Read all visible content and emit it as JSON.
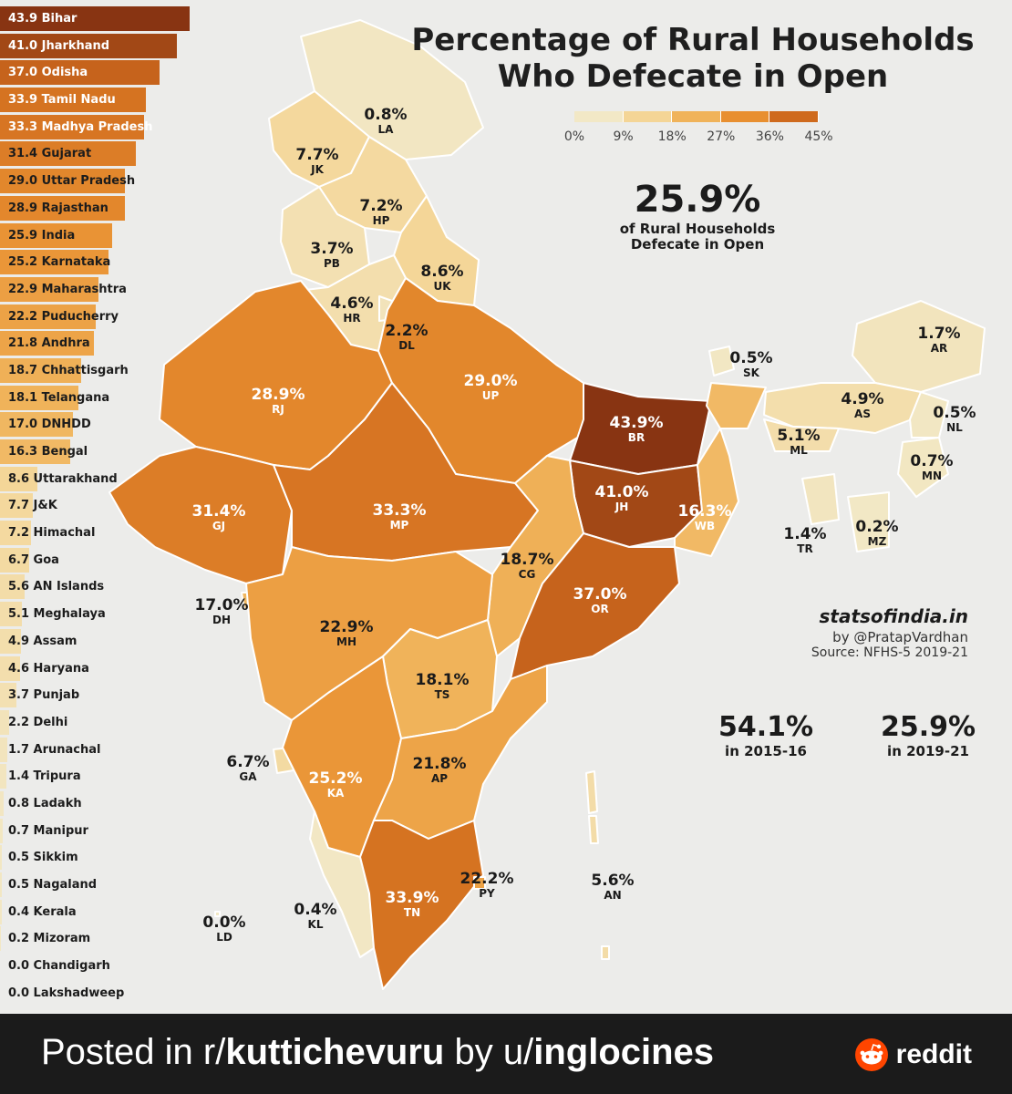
{
  "title_line1": "Percentage of Rural Households",
  "title_line2": "Who Defecate in Open",
  "legend": {
    "ticks": [
      "0%",
      "9%",
      "18%",
      "27%",
      "36%",
      "45%"
    ],
    "colors": [
      "#f2e8c6",
      "#f4d596",
      "#f0b35a",
      "#e88f30",
      "#cf6a1d",
      "#8a3512"
    ]
  },
  "headline": {
    "value": "25.9%",
    "line1": "of Rural Households",
    "line2": "Defecate in Open"
  },
  "credits": {
    "site": "statsofindia.in",
    "by": "by @PratapVardhan",
    "source": "Source: NFHS-5 2019-21"
  },
  "comparison": [
    {
      "value": "54.1%",
      "label": "in 2015-16"
    },
    {
      "value": "25.9%",
      "label": "in 2019-21"
    }
  ],
  "chart_data": {
    "type": "bar",
    "max": 45,
    "items": [
      {
        "value": 43.9,
        "name": "Bihar",
        "label": "43.9 Bihar"
      },
      {
        "value": 41.0,
        "name": "Jharkhand",
        "label": "41.0 Jharkhand"
      },
      {
        "value": 37.0,
        "name": "Odisha",
        "label": "37.0 Odisha"
      },
      {
        "value": 33.9,
        "name": "Tamil Nadu",
        "label": "33.9 Tamil Nadu"
      },
      {
        "value": 33.3,
        "name": "Madhya Pradesh",
        "label": "33.3 Madhya Pradesh"
      },
      {
        "value": 31.4,
        "name": "Gujarat",
        "label": "31.4 Gujarat"
      },
      {
        "value": 29.0,
        "name": "Uttar Pradesh",
        "label": "29.0 Uttar Pradesh"
      },
      {
        "value": 28.9,
        "name": "Rajasthan",
        "label": "28.9 Rajasthan"
      },
      {
        "value": 25.9,
        "name": "India",
        "label": "25.9 India"
      },
      {
        "value": 25.2,
        "name": "Karnataka",
        "label": "25.2 Karnataka"
      },
      {
        "value": 22.9,
        "name": "Maharashtra",
        "label": "22.9 Maharashtra"
      },
      {
        "value": 22.2,
        "name": "Puducherry",
        "label": "22.2 Puducherry"
      },
      {
        "value": 21.8,
        "name": "Andhra",
        "label": "21.8 Andhra"
      },
      {
        "value": 18.7,
        "name": "Chhattisgarh",
        "label": "18.7 Chhattisgarh"
      },
      {
        "value": 18.1,
        "name": "Telangana",
        "label": "18.1 Telangana"
      },
      {
        "value": 17.0,
        "name": "DNHDD",
        "label": "17.0 DNHDD"
      },
      {
        "value": 16.3,
        "name": "Bengal",
        "label": "16.3 Bengal"
      },
      {
        "value": 8.6,
        "name": "Uttarakhand",
        "label": "8.6 Uttarakhand"
      },
      {
        "value": 7.7,
        "name": "J&K",
        "label": "7.7 J&K"
      },
      {
        "value": 7.2,
        "name": "Himachal",
        "label": "7.2 Himachal"
      },
      {
        "value": 6.7,
        "name": "Goa",
        "label": "6.7 Goa"
      },
      {
        "value": 5.6,
        "name": "AN Islands",
        "label": "5.6 AN Islands"
      },
      {
        "value": 5.1,
        "name": "Meghalaya",
        "label": "5.1 Meghalaya"
      },
      {
        "value": 4.9,
        "name": "Assam",
        "label": "4.9 Assam"
      },
      {
        "value": 4.6,
        "name": "Haryana",
        "label": "4.6 Haryana"
      },
      {
        "value": 3.7,
        "name": "Punjab",
        "label": "3.7 Punjab"
      },
      {
        "value": 2.2,
        "name": "Delhi",
        "label": "2.2 Delhi"
      },
      {
        "value": 1.7,
        "name": "Arunachal",
        "label": "1.7 Arunachal"
      },
      {
        "value": 1.4,
        "name": "Tripura",
        "label": "1.4 Tripura"
      },
      {
        "value": 0.8,
        "name": "Ladakh",
        "label": "0.8 Ladakh"
      },
      {
        "value": 0.7,
        "name": "Manipur",
        "label": "0.7 Manipur"
      },
      {
        "value": 0.5,
        "name": "Sikkim",
        "label": "0.5 Sikkim"
      },
      {
        "value": 0.5,
        "name": "Nagaland",
        "label": "0.5 Nagaland"
      },
      {
        "value": 0.4,
        "name": "Kerala",
        "label": "0.4 Kerala"
      },
      {
        "value": 0.2,
        "name": "Mizoram",
        "label": "0.2 Mizoram"
      },
      {
        "value": 0.0,
        "name": "Chandigarh",
        "label": "0.0 Chandigarh"
      },
      {
        "value": 0.0,
        "name": "Lakshadweep",
        "label": "0.0 Lakshadweep"
      }
    ]
  },
  "map_labels": {
    "LA": {
      "pct": "0.8%",
      "code": "LA",
      "value": 0.8
    },
    "JK": {
      "pct": "7.7%",
      "code": "JK",
      "value": 7.7
    },
    "HP": {
      "pct": "7.2%",
      "code": "HP",
      "value": 7.2
    },
    "PB": {
      "pct": "3.7%",
      "code": "PB",
      "value": 3.7
    },
    "UK": {
      "pct": "8.6%",
      "code": "UK",
      "value": 8.6
    },
    "HR": {
      "pct": "4.6%",
      "code": "HR",
      "value": 4.6
    },
    "DL": {
      "pct": "2.2%",
      "code": "DL",
      "value": 2.2
    },
    "RJ": {
      "pct": "28.9%",
      "code": "RJ",
      "value": 28.9
    },
    "UP": {
      "pct": "29.0%",
      "code": "UP",
      "value": 29.0
    },
    "BR": {
      "pct": "43.9%",
      "code": "BR",
      "value": 43.9
    },
    "SK": {
      "pct": "0.5%",
      "code": "SK",
      "value": 0.5
    },
    "AR": {
      "pct": "1.7%",
      "code": "AR",
      "value": 1.7
    },
    "AS": {
      "pct": "4.9%",
      "code": "AS",
      "value": 4.9
    },
    "NL": {
      "pct": "0.5%",
      "code": "NL",
      "value": 0.5
    },
    "ML": {
      "pct": "5.1%",
      "code": "ML",
      "value": 5.1
    },
    "MN": {
      "pct": "0.7%",
      "code": "MN",
      "value": 0.7
    },
    "TR": {
      "pct": "1.4%",
      "code": "TR",
      "value": 1.4
    },
    "MZ": {
      "pct": "0.2%",
      "code": "MZ",
      "value": 0.2
    },
    "JH": {
      "pct": "41.0%",
      "code": "JH",
      "value": 41.0
    },
    "WB": {
      "pct": "16.3%",
      "code": "WB",
      "value": 16.3
    },
    "GJ": {
      "pct": "31.4%",
      "code": "GJ",
      "value": 31.4
    },
    "MP": {
      "pct": "33.3%",
      "code": "MP",
      "value": 33.3
    },
    "CG": {
      "pct": "18.7%",
      "code": "CG",
      "value": 18.7
    },
    "OR": {
      "pct": "37.0%",
      "code": "OR",
      "value": 37.0
    },
    "DH": {
      "pct": "17.0%",
      "code": "DH",
      "value": 17.0
    },
    "MH": {
      "pct": "22.9%",
      "code": "MH",
      "value": 22.9
    },
    "TS": {
      "pct": "18.1%",
      "code": "TS",
      "value": 18.1
    },
    "GA": {
      "pct": "6.7%",
      "code": "GA",
      "value": 6.7
    },
    "KA": {
      "pct": "25.2%",
      "code": "KA",
      "value": 25.2
    },
    "AP": {
      "pct": "21.8%",
      "code": "AP",
      "value": 21.8
    },
    "PY": {
      "pct": "22.2%",
      "code": "PY",
      "value": 22.2
    },
    "AN": {
      "pct": "5.6%",
      "code": "AN",
      "value": 5.6
    },
    "TN": {
      "pct": "33.9%",
      "code": "TN",
      "value": 33.9
    },
    "KL": {
      "pct": "0.4%",
      "code": "KL",
      "value": 0.4
    },
    "LD": {
      "pct": "0.0%",
      "code": "LD",
      "value": 0.0
    }
  },
  "footer": {
    "posted_prefix": "Posted in r/",
    "subreddit": "kuttichevuru",
    "by_prefix": " by u/",
    "user": "inglocines",
    "brand": "reddit"
  }
}
